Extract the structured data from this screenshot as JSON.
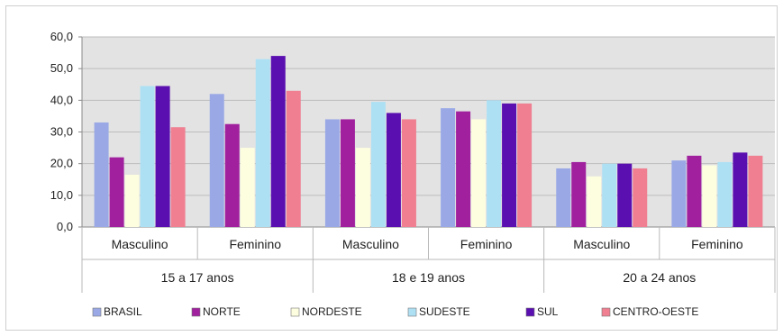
{
  "chart_data": {
    "type": "bar",
    "title": "",
    "xlabel": "",
    "ylabel": "",
    "ylim": [
      0,
      60
    ],
    "y_ticks": [
      "0,0",
      "10,0",
      "20,0",
      "30,0",
      "40,0",
      "50,0",
      "60,0"
    ],
    "grid": true,
    "legend_position": "bottom",
    "groups": [
      {
        "label": "15 a 17 anos",
        "categories": [
          "Masculino",
          "Feminino"
        ]
      },
      {
        "label": "18 e 19 anos",
        "categories": [
          "Masculino",
          "Feminino"
        ]
      },
      {
        "label": "20 a 24 anos",
        "categories": [
          "Masculino",
          "Feminino"
        ]
      }
    ],
    "categories": [
      "Masculino",
      "Feminino",
      "Masculino",
      "Feminino",
      "Masculino",
      "Feminino"
    ],
    "series": [
      {
        "name": "BRASIL",
        "color": "#9aa9e6",
        "values": [
          33.0,
          42.0,
          34.0,
          37.5,
          18.5,
          21.0
        ]
      },
      {
        "name": "NORTE",
        "color": "#a0209e",
        "values": [
          22.0,
          32.5,
          34.0,
          36.5,
          20.5,
          22.5
        ]
      },
      {
        "name": "NORDESTE",
        "color": "#fdfde0",
        "values": [
          16.5,
          25.0,
          25.0,
          34.0,
          16.0,
          19.5
        ]
      },
      {
        "name": "SUDESTE",
        "color": "#aee0f4",
        "values": [
          44.5,
          53.0,
          39.5,
          40.0,
          20.0,
          20.5
        ]
      },
      {
        "name": "SUL",
        "color": "#5a0fb0",
        "values": [
          44.5,
          54.0,
          36.0,
          39.0,
          20.0,
          23.5
        ]
      },
      {
        "name": "CENTRO-OESTE",
        "color": "#ef7f91",
        "values": [
          31.5,
          43.0,
          34.0,
          39.0,
          18.5,
          22.5
        ]
      }
    ]
  }
}
